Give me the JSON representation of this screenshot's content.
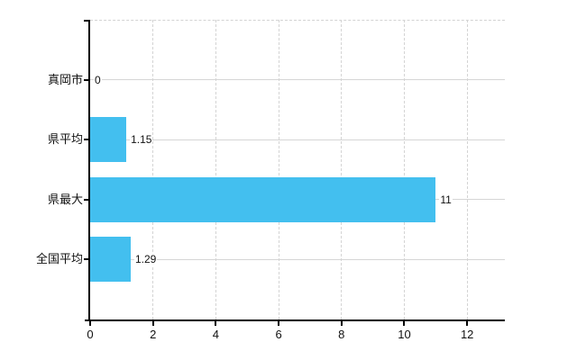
{
  "chart_data": {
    "type": "bar",
    "orientation": "horizontal",
    "title": "",
    "categories": [
      "真岡市",
      "県平均",
      "県最大",
      "全国平均"
    ],
    "values": [
      0,
      1.15,
      11,
      1.29
    ],
    "value_labels": [
      "0",
      "1.15",
      "11",
      "1.29"
    ],
    "xtick_labels": [
      "0",
      "2",
      "4",
      "6",
      "8",
      "10",
      "12"
    ],
    "xtick_values": [
      0,
      2,
      4,
      6,
      8,
      10,
      12
    ],
    "xlim": [
      0,
      13.2
    ],
    "ylabel": "",
    "xlabel": "",
    "legend_position": "none",
    "grid": {
      "vertical": "dashed",
      "horizontal": "solid",
      "top_border": "dashed"
    }
  },
  "colors": {
    "bar": "#43BFEF",
    "axis": "#000000",
    "gridline": "#d6d6d6",
    "text": "#111111",
    "background": "#ffffff"
  }
}
